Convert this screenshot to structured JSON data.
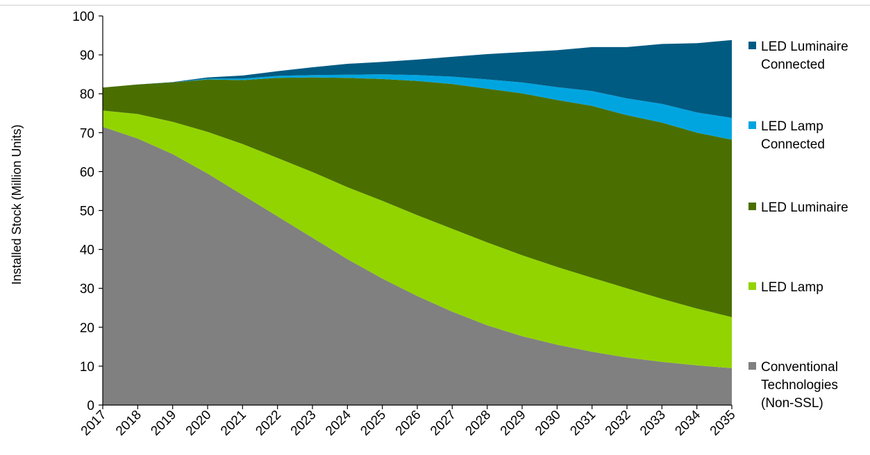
{
  "chart_data": {
    "type": "area",
    "stacked": true,
    "title": "",
    "xlabel": "",
    "ylabel": "Installed Stock (Million Units)",
    "ylim": [
      0,
      100
    ],
    "yticks": [
      0,
      10,
      20,
      30,
      40,
      50,
      60,
      70,
      80,
      90,
      100
    ],
    "grid": false,
    "legend_position": "right",
    "x": [
      "2017",
      "2018",
      "2019",
      "2020",
      "2021",
      "2022",
      "2023",
      "2024",
      "2025",
      "2026",
      "2027",
      "2028",
      "2029",
      "2030",
      "2031",
      "2032",
      "2033",
      "2034",
      "2035"
    ],
    "series": [
      {
        "name": "Conventional Technologies (Non-SSL)",
        "legend_lines": [
          "Conventional",
          "Technologies",
          "(Non-SSL)"
        ],
        "color": "#808080",
        "values": [
          71.5,
          68.5,
          64.5,
          59.5,
          54,
          48.5,
          43,
          37.5,
          32.5,
          28,
          24,
          20.5,
          17.7,
          15.5,
          13.7,
          12.2,
          11.1,
          10.2,
          9.5
        ]
      },
      {
        "name": "LED Lamp",
        "legend_lines": [
          "LED Lamp"
        ],
        "color": "#92d400",
        "values": [
          4.2,
          6.3,
          8.3,
          10.7,
          13.1,
          15,
          16.9,
          18.5,
          20,
          20.8,
          21.3,
          21.3,
          20.8,
          20,
          19,
          17.8,
          16.2,
          14.6,
          13.1
        ]
      },
      {
        "name": "LED Luminaire",
        "legend_lines": [
          "LED Luminaire"
        ],
        "color": "#4a6f00",
        "values": [
          5.9,
          7.6,
          10.1,
          13.5,
          16.4,
          20.6,
          24.3,
          28.1,
          31.3,
          34.5,
          37.2,
          39.5,
          41.6,
          42.9,
          44.2,
          44.5,
          45.3,
          45.2,
          45.6
        ]
      },
      {
        "name": "LED Lamp Connected",
        "legend_lines": [
          "LED Lamp",
          "Connected"
        ],
        "color": "#00a5e0",
        "values": [
          0,
          0,
          0,
          0.2,
          0.4,
          0.5,
          0.6,
          0.8,
          1.2,
          1.5,
          1.9,
          2.4,
          2.8,
          3.3,
          3.8,
          4.3,
          4.8,
          5.2,
          5.6
        ]
      },
      {
        "name": "LED Luminaire Connected",
        "legend_lines": [
          "LED Luminaire",
          "Connected"
        ],
        "color": "#005b82",
        "values": [
          0,
          0,
          0.1,
          0.3,
          0.8,
          1.2,
          2,
          2.8,
          3.2,
          4,
          5.1,
          6.5,
          7.8,
          9.5,
          11.3,
          13.2,
          15.4,
          17.8,
          20
        ]
      }
    ]
  }
}
